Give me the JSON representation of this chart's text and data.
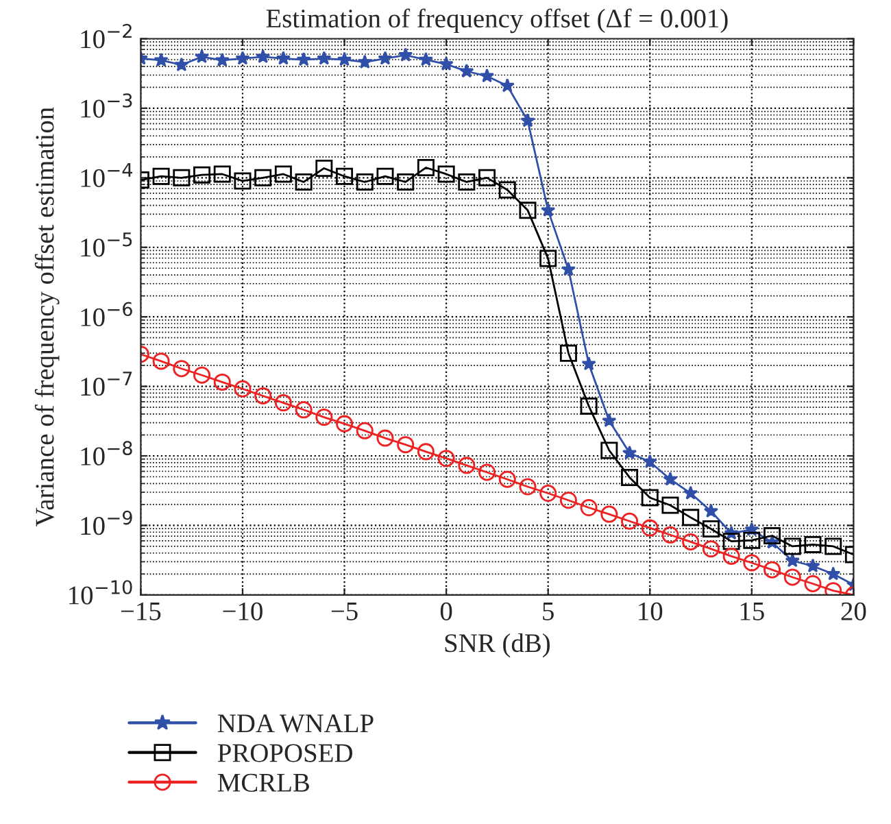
{
  "chart_data": {
    "type": "line",
    "title": "Estimation of frequency offset (Δf = 0.001)",
    "xlabel": "SNR (dB)",
    "ylabel": "Variance of frequency offset estimation",
    "x": [
      -15,
      -14,
      -13,
      -12,
      -11,
      -10,
      -9,
      -8,
      -7,
      -6,
      -5,
      -4,
      -3,
      -2,
      -1,
      0,
      1,
      2,
      3,
      4,
      5,
      6,
      7,
      8,
      9,
      10,
      11,
      12,
      13,
      14,
      15,
      16,
      17,
      18,
      19,
      20
    ],
    "series": [
      {
        "name": "NDA WNALP",
        "color": "#2f4fa8",
        "marker": "star",
        "values": [
          0.0052,
          0.0049,
          0.0042,
          0.0055,
          0.0049,
          0.0052,
          0.0055,
          0.0052,
          0.005,
          0.0052,
          0.005,
          0.0046,
          0.0052,
          0.0058,
          0.005,
          0.0043,
          0.0034,
          0.0029,
          0.0021,
          0.00066,
          3.4e-05,
          4.8e-06,
          2.1e-07,
          3.2e-08,
          1.1e-08,
          8.2e-09,
          4.6e-09,
          2.9e-09,
          1.6e-09,
          7.7e-10,
          8.7e-10,
          5.7e-10,
          3.1e-10,
          2.6e-10,
          2e-10,
          1.4e-10
        ]
      },
      {
        "name": "PROPOSED",
        "color": "#000000",
        "marker": "square",
        "values": [
          9.3e-05,
          0.000105,
          0.0001,
          0.00011,
          0.000113,
          9e-05,
          0.0001,
          0.000113,
          8.7e-05,
          0.000137,
          0.000105,
          8.7e-05,
          0.000105,
          8.7e-05,
          0.00014,
          0.000113,
          8.7e-05,
          0.0001,
          6.7e-05,
          3.4e-05,
          6.9e-06,
          3e-07,
          5.2e-08,
          1.2e-08,
          4.9e-09,
          2.5e-09,
          1.95e-09,
          1.3e-09,
          8.9e-10,
          5.9e-10,
          6.1e-10,
          7.1e-10,
          5e-10,
          5.3e-10,
          5e-10,
          3.8e-10
        ]
      },
      {
        "name": "MCRLB",
        "color": "#ee2222",
        "marker": "circle",
        "values": [
          2.9e-07,
          2.3e-07,
          1.8e-07,
          1.45e-07,
          1.15e-07,
          9.2e-08,
          7.3e-08,
          5.8e-08,
          4.6e-08,
          3.6e-08,
          2.9e-08,
          2.3e-08,
          1.8e-08,
          1.45e-08,
          1.15e-08,
          9.2e-09,
          7.3e-09,
          5.8e-09,
          4.6e-09,
          3.6e-09,
          2.9e-09,
          2.3e-09,
          1.8e-09,
          1.45e-09,
          1.15e-09,
          9.2e-10,
          7.3e-10,
          5.8e-10,
          4.6e-10,
          3.6e-10,
          2.9e-10,
          2.3e-10,
          1.8e-10,
          1.45e-10,
          1.15e-10,
          1e-10
        ]
      }
    ],
    "log": "y",
    "xlim": [
      -15,
      20
    ],
    "xticks": [
      {
        "value": -15,
        "label": "−15"
      },
      {
        "value": -10,
        "label": "−10"
      },
      {
        "value": -5,
        "label": "−5"
      },
      0,
      5,
      10,
      15,
      20
    ],
    "ylim": [
      1e-10,
      0.01
    ],
    "yticks": [
      {
        "value": 1e-10,
        "label": "10$^{−10}$"
      },
      {
        "value": 1e-09,
        "label": "10$^{−9}$"
      },
      {
        "value": 1e-08,
        "label": "10$^{−8}$"
      },
      {
        "value": 1e-07,
        "label": "10$^{−7}$"
      },
      {
        "value": 1e-06,
        "label": "10$^{−6}$"
      },
      {
        "value": 1e-05,
        "label": "10$^{−5}$"
      },
      {
        "value": 0.0001,
        "label": "10$^{−4}$"
      },
      {
        "value": 0.001,
        "label": "10$^{−3}$"
      },
      {
        "value": 0.01,
        "label": "10$^{−2}$"
      }
    ],
    "grid": true,
    "legend": "bottom",
    "line_style": "solid"
  }
}
